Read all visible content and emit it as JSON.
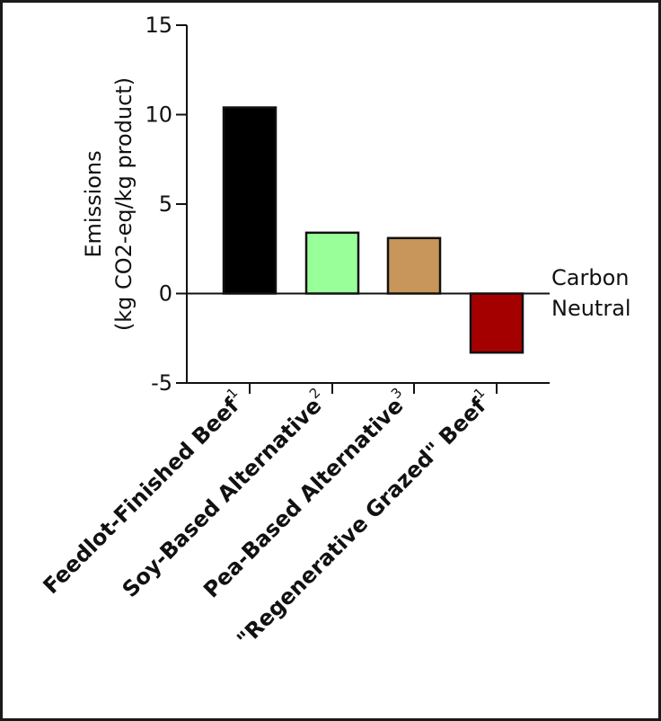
{
  "chart_data": {
    "type": "bar",
    "ylabel_lines": [
      "Emissions",
      "(kg CO2-eq/kg product)"
    ],
    "ylim": [
      -5,
      15
    ],
    "yticks": [
      15,
      10,
      5,
      0,
      -5
    ],
    "categories": [
      {
        "label": "Feedlot-Finished Beef",
        "sup": "1"
      },
      {
        "label": "Soy-Based Alternative",
        "sup": "2"
      },
      {
        "label": "Pea-Based Alternative",
        "sup": "3"
      },
      {
        "label": "\"Regenerative Grazed\" Beef",
        "sup": "1"
      }
    ],
    "values": [
      10.4,
      3.4,
      3.1,
      -3.3
    ],
    "colors": [
      "#000000",
      "#99ff99",
      "#c8965a",
      "#a50000"
    ],
    "annotation_lines": [
      "Carbon",
      "Neutral"
    ]
  }
}
